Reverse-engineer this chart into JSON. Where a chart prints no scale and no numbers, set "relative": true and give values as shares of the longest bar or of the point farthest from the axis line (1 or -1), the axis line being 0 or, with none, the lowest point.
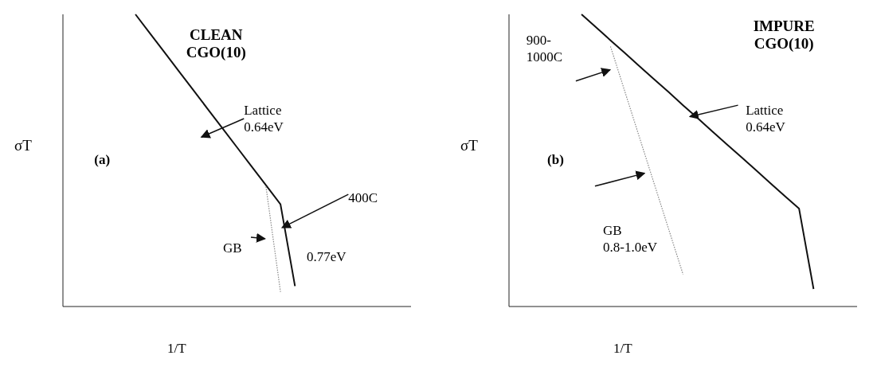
{
  "chart_data": [
    {
      "type": "line",
      "title": "CLEAN\nCGO(10)",
      "xlabel": "1/T",
      "ylabel": "σT",
      "relative": true,
      "marker": "none",
      "categories": [
        null,
        null,
        null,
        null,
        null,
        null,
        null,
        null,
        null,
        null,
        null,
        null,
        null,
        null,
        null,
        null,
        null,
        null,
        null,
        null,
        null,
        null,
        null,
        null,
        null
      ],
      "series": [
        {
          "color": "#111111",
          "line_style": "solid",
          "values": [
            null,
            null,
            null,
            null,
            null,
            1.0,
            0.935,
            0.87,
            0.805,
            0.74,
            0.675,
            0.61,
            0.545,
            0.48,
            0.415,
            0.35,
            0.07,
            null,
            null,
            null,
            null,
            null,
            null,
            null,
            null
          ]
        },
        {
          "color": "#888888",
          "line_style": "dotted",
          "values": [
            null,
            null,
            null,
            null,
            null,
            null,
            null,
            null,
            null,
            null,
            null,
            null,
            null,
            null,
            0.41,
            0.05,
            null,
            null,
            null,
            null,
            null,
            null,
            null,
            null,
            null
          ]
        }
      ],
      "annotations": [
        "Lattice\n0.64eV",
        "(a)",
        "400C",
        "GB",
        "0.77eV"
      ]
    },
    {
      "type": "line",
      "title": "IMPURE\nCGO(10)",
      "xlabel": "1/T",
      "ylabel": "σT",
      "relative": true,
      "marker": "none",
      "categories": [
        null,
        null,
        null,
        null,
        null,
        null,
        null,
        null,
        null,
        null,
        null,
        null,
        null,
        null,
        null,
        null,
        null,
        null,
        null,
        null,
        null,
        null,
        null,
        null,
        null
      ],
      "series": [
        {
          "color": "#111111",
          "line_style": "solid",
          "values": [
            null,
            null,
            null,
            null,
            null,
            1.0,
            0.956,
            0.911,
            0.867,
            0.822,
            0.778,
            0.734,
            0.689,
            0.645,
            0.6,
            0.556,
            0.512,
            0.468,
            0.423,
            0.379,
            0.335,
            0.06,
            null,
            null,
            null
          ]
        },
        {
          "color": "#888888",
          "line_style": "dotted",
          "values": [
            null,
            null,
            null,
            null,
            null,
            null,
            null,
            0.89,
            0.734,
            0.578,
            0.422,
            0.266,
            0.11,
            null,
            null,
            null,
            null,
            null,
            null,
            null,
            null,
            null,
            null,
            null,
            null
          ]
        }
      ],
      "annotations": [
        "900-\n1000C",
        "Lattice\n0.64eV",
        "(b)",
        "GB\n0.8-1.0eV"
      ]
    }
  ]
}
